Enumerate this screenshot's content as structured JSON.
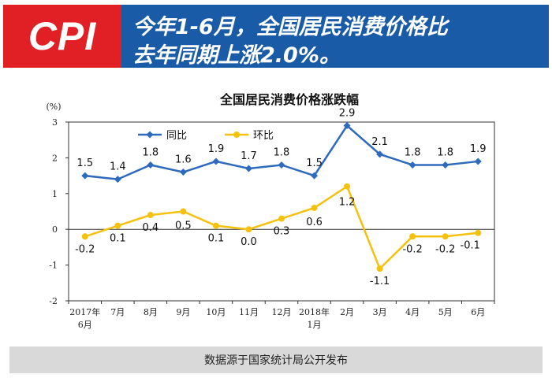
{
  "header": {
    "badge": "CPI",
    "headline_line1": "今年1-6月，全国居民消费价格比",
    "headline_line2": "去年同期上涨2.0%。"
  },
  "colors": {
    "badge_bg": "#e02025",
    "headline_bg": "#1a5ba8",
    "yoy": "#2e6bbd",
    "mom": "#f4c20d"
  },
  "chart_data": {
    "type": "line",
    "title": "全国居民消费价格涨跌幅",
    "ylabel": "(%)",
    "ylim": [
      -2,
      3
    ],
    "yticks": [
      "3",
      "2",
      "1",
      "0",
      "-1",
      "-2"
    ],
    "categories": [
      "2017年\n6月",
      "7月",
      "8月",
      "9月",
      "10月",
      "11月",
      "12月",
      "2018年\n1月",
      "2月",
      "3月",
      "4月",
      "5月",
      "6月"
    ],
    "legend_position": "top-left",
    "series": [
      {
        "name": "同比",
        "values": [
          1.5,
          1.4,
          1.8,
          1.6,
          1.9,
          1.7,
          1.8,
          1.5,
          2.9,
          2.1,
          1.8,
          1.8,
          1.9
        ],
        "labels": [
          "1.5",
          "1.4",
          "1.8",
          "1.6",
          "1.9",
          "1.7",
          "1.8",
          "1.5",
          "2.9",
          "2.1",
          "1.8",
          "1.8",
          "1.9"
        ]
      },
      {
        "name": "环比",
        "values": [
          -0.2,
          0.1,
          0.4,
          0.5,
          0.1,
          0.0,
          0.3,
          0.6,
          1.2,
          -1.1,
          -0.2,
          -0.2,
          -0.1
        ],
        "labels": [
          "-0.2",
          "0.1",
          "0.4",
          "0.5",
          "0.1",
          "0.0",
          "0.3",
          "0.6",
          "1.2",
          "-1.1",
          "-0.2",
          "-0.2",
          "-0.1"
        ]
      }
    ]
  },
  "footer": {
    "source": "数据源于国家统计局公开发布"
  }
}
